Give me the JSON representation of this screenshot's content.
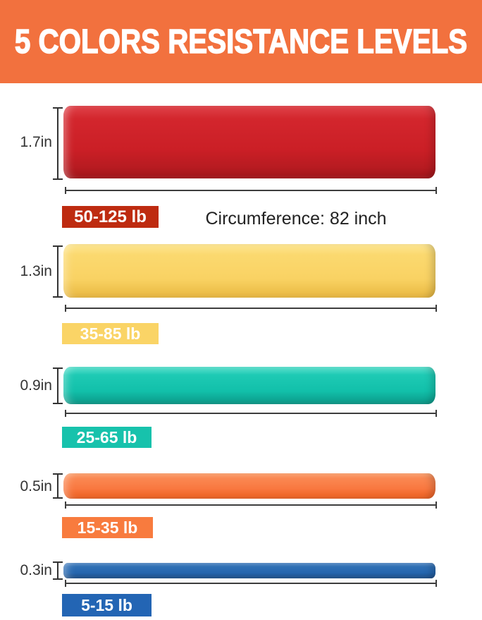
{
  "header": {
    "title": "5 COLORS RESISTANCE LEVELS",
    "bg_color": "#F2713E",
    "text_color": "#FFFFFF"
  },
  "circumference": {
    "label": "Circumference: 82 inch",
    "value_inch": 82
  },
  "bands": [
    {
      "color_name": "red",
      "width_label": "1.7in",
      "width_in": 1.7,
      "resistance_label": "50-125 lb",
      "resistance_min_lb": 50,
      "resistance_max_lb": 125,
      "band_color": "#CE2127",
      "badge_bg_color": "#BE2B10",
      "badge_text_color": "#FFFFFF"
    },
    {
      "color_name": "yellow",
      "width_label": "1.3in",
      "width_in": 1.3,
      "resistance_label": "35-85 lb",
      "resistance_min_lb": 35,
      "resistance_max_lb": 85,
      "band_color": "#F9D263",
      "badge_bg_color": "#FAD466",
      "badge_text_color": "#FFFFFF"
    },
    {
      "color_name": "teal",
      "width_label": "0.9in",
      "width_in": 0.9,
      "resistance_label": "25-65 lb",
      "resistance_min_lb": 25,
      "resistance_max_lb": 65,
      "band_color": "#12C0AA",
      "badge_bg_color": "#17C2AC",
      "badge_text_color": "#FFFFFF"
    },
    {
      "color_name": "orange",
      "width_label": "0.5in",
      "width_in": 0.5,
      "resistance_label": "15-35 lb",
      "resistance_min_lb": 15,
      "resistance_max_lb": 35,
      "band_color": "#F97840",
      "badge_bg_color": "#F87B3E",
      "badge_text_color": "#FFFFFF"
    },
    {
      "color_name": "blue",
      "width_label": "0.3in",
      "width_in": 0.3,
      "resistance_label": "5-15 lb",
      "resistance_min_lb": 5,
      "resistance_max_lb": 15,
      "band_color": "#2465AE",
      "badge_bg_color": "#2365B4",
      "badge_text_color": "#FFFFFF"
    }
  ]
}
